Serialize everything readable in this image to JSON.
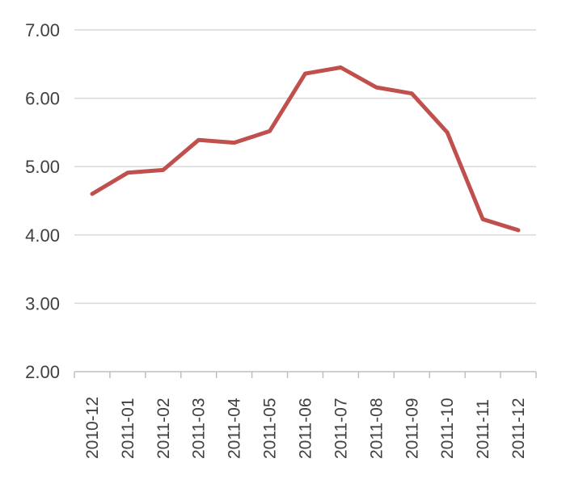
{
  "chart_data": {
    "type": "line",
    "categories": [
      "2010-12",
      "2011-01",
      "2011-02",
      "2011-03",
      "2011-04",
      "2011-05",
      "2011-06",
      "2011-07",
      "2011-08",
      "2011-09",
      "2011-10",
      "2011-11",
      "2011-12"
    ],
    "series": [
      {
        "values": [
          4.6,
          4.91,
          4.95,
          5.39,
          5.35,
          5.52,
          6.36,
          6.45,
          6.16,
          6.07,
          5.5,
          4.23,
          4.07
        ]
      }
    ],
    "yticks": [
      "2.00",
      "3.00",
      "4.00",
      "5.00",
      "6.00",
      "7.00"
    ],
    "ylim": [
      2,
      7
    ],
    "grid": true,
    "line_color": "#c0504d",
    "grid_color": "#d9d9d9",
    "axis_color": "#bfbfbf"
  }
}
